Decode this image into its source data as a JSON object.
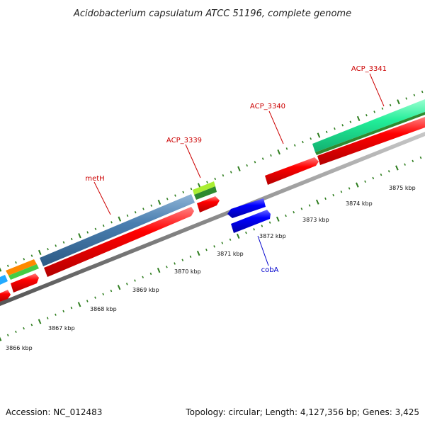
{
  "title": "Acidobacterium capsulatum ATCC 51196, complete genome",
  "footer": {
    "accession": "Accession: NC_012483",
    "summary": "Topology: circular; Length: 4,127,356 bp; Genes: 3,425"
  },
  "colors": {
    "backbone": "#8a8a8a",
    "tick": "#2e7d1e",
    "forward_cds": "#ff0000",
    "reverse_cds": "#0000ff",
    "forward_label": "#cc0000",
    "reverse_label": "#0000cc"
  },
  "scale_labels": [
    "3866 kbp",
    "3867 kbp",
    "3868 kbp",
    "3869 kbp",
    "3870 kbp",
    "3871 kbp",
    "3872 kbp",
    "3873 kbp",
    "3874 kbp",
    "3875 kbp"
  ],
  "gene_labels": [
    {
      "text": "metH",
      "strand": "forward"
    },
    {
      "text": "ACP_3339",
      "strand": "forward"
    },
    {
      "text": "ACP_3340",
      "strand": "forward"
    },
    {
      "text": "ACP_3341",
      "strand": "forward"
    },
    {
      "text": "cobA",
      "strand": "reverse"
    }
  ],
  "feature_colors": {
    "cog_blue": "#4a7fb0",
    "cog_lime": "#88dd22",
    "cog_darkgreen": "#2f8a2f",
    "cog_mint": "#22ee99",
    "cog_orange": "#ff8800",
    "cog_green": "#44cc44",
    "cog_cyan": "#22aaff"
  }
}
